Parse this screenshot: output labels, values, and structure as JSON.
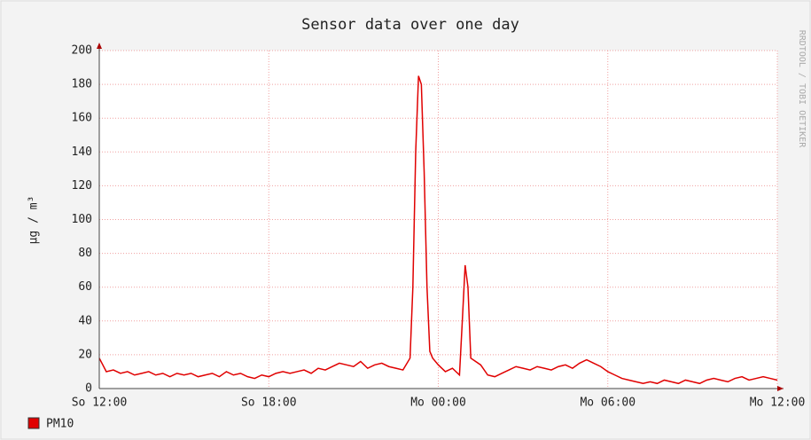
{
  "chart_data": {
    "type": "line",
    "title": "Sensor data over one day",
    "y_label": "µg / m³",
    "watermark": "RRDTOOL / TOBI OETIKER",
    "x": [
      0,
      0.25,
      0.5,
      0.75,
      1,
      1.25,
      1.5,
      1.75,
      2,
      2.25,
      2.5,
      2.75,
      3,
      3.25,
      3.5,
      3.75,
      4,
      4.25,
      4.5,
      4.75,
      5,
      5.25,
      5.5,
      5.75,
      6,
      6.25,
      6.5,
      6.75,
      7,
      7.25,
      7.5,
      7.75,
      8,
      8.25,
      8.5,
      8.75,
      9,
      9.25,
      9.5,
      9.75,
      10,
      10.25,
      10.5,
      10.75,
      11,
      11.1,
      11.2,
      11.3,
      11.4,
      11.5,
      11.6,
      11.7,
      11.8,
      12,
      12.25,
      12.5,
      12.75,
      12.85,
      12.95,
      13.05,
      13.15,
      13.5,
      13.75,
      14,
      14.25,
      14.5,
      14.75,
      15,
      15.25,
      15.5,
      15.75,
      16,
      16.25,
      16.5,
      16.75,
      17,
      17.25,
      17.5,
      17.75,
      18,
      18.25,
      18.5,
      18.75,
      19,
      19.25,
      19.5,
      19.75,
      20,
      20.25,
      20.5,
      20.75,
      21,
      21.25,
      21.5,
      21.75,
      22,
      22.25,
      22.5,
      22.75,
      23,
      23.25,
      23.5,
      23.75,
      24
    ],
    "series": [
      {
        "name": "PM10",
        "color": "#e00000",
        "values": [
          18,
          10,
          11,
          9,
          10,
          8,
          9,
          10,
          8,
          9,
          7,
          9,
          8,
          9,
          7,
          8,
          9,
          7,
          10,
          8,
          9,
          7,
          6,
          8,
          7,
          9,
          10,
          9,
          10,
          11,
          9,
          12,
          11,
          13,
          15,
          14,
          13,
          16,
          12,
          14,
          15,
          13,
          12,
          11,
          18,
          60,
          140,
          185,
          180,
          128,
          60,
          22,
          18,
          14,
          10,
          12,
          8,
          40,
          73,
          60,
          18,
          14,
          8,
          7,
          9,
          11,
          13,
          12,
          11,
          13,
          12,
          11,
          13,
          14,
          12,
          15,
          17,
          15,
          13,
          10,
          8,
          6,
          5,
          4,
          3,
          4,
          3,
          5,
          4,
          3,
          5,
          4,
          3,
          5,
          6,
          5,
          4,
          6,
          7,
          5,
          6,
          7,
          6,
          5
        ]
      }
    ],
    "xlim": [
      0,
      24
    ],
    "xticks": [
      {
        "value": 0,
        "label": "So 12:00"
      },
      {
        "value": 6,
        "label": "So 18:00"
      },
      {
        "value": 12,
        "label": "Mo 00:00"
      },
      {
        "value": 18,
        "label": "Mo 06:00"
      },
      {
        "value": 24,
        "label": "Mo 12:00"
      }
    ],
    "ylim": [
      0,
      200
    ],
    "yticks": [
      0,
      20,
      40,
      60,
      80,
      100,
      120,
      140,
      160,
      180,
      200
    ],
    "grid": true
  }
}
